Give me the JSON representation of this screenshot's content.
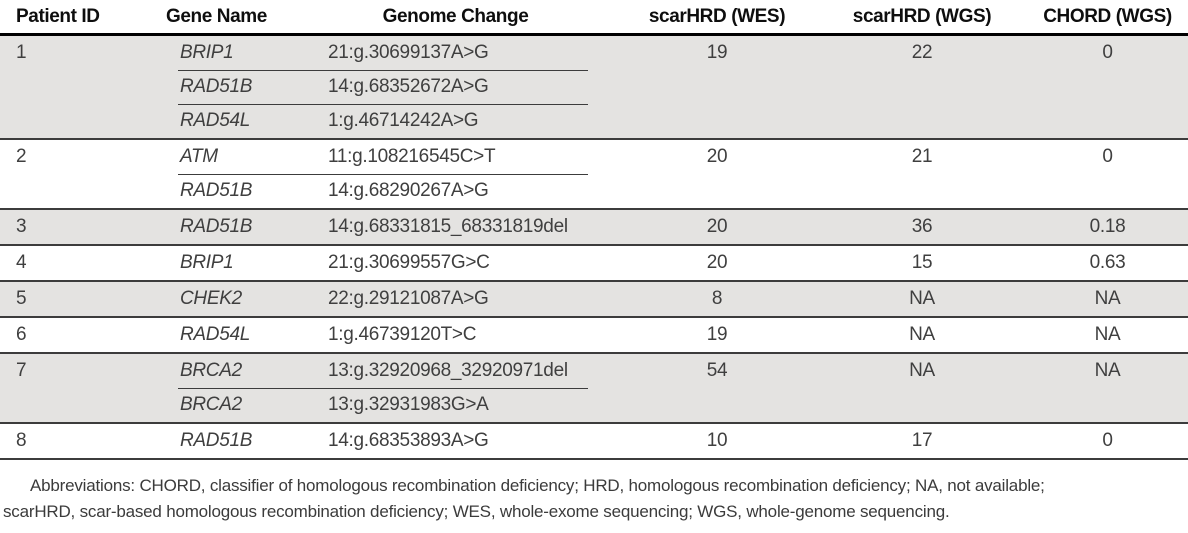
{
  "table": {
    "headers": [
      "Patient ID",
      "Gene Name",
      "Genome Change",
      "scarHRD (WES)",
      "scarHRD (WGS)",
      "CHORD (WGS)"
    ],
    "patients": [
      {
        "id": "1",
        "genes": [
          {
            "gene": "BRIP1",
            "change": "21:g.30699137A>G"
          },
          {
            "gene": "RAD51B",
            "change": "14:g.68352672A>G"
          },
          {
            "gene": "RAD54L",
            "change": "1:g.46714242A>G"
          }
        ],
        "scarhrd_wes": "19",
        "scarhrd_wgs": "22",
        "chord_wgs": "0"
      },
      {
        "id": "2",
        "genes": [
          {
            "gene": "ATM",
            "change": "11:g.108216545C>T"
          },
          {
            "gene": "RAD51B",
            "change": "14:g.68290267A>G"
          }
        ],
        "scarhrd_wes": "20",
        "scarhrd_wgs": "21",
        "chord_wgs": "0"
      },
      {
        "id": "3",
        "genes": [
          {
            "gene": "RAD51B",
            "change": "14:g.68331815_68331819del"
          }
        ],
        "scarhrd_wes": "20",
        "scarhrd_wgs": "36",
        "chord_wgs": "0.18"
      },
      {
        "id": "4",
        "genes": [
          {
            "gene": "BRIP1",
            "change": "21:g.30699557G>C"
          }
        ],
        "scarhrd_wes": "20",
        "scarhrd_wgs": "15",
        "chord_wgs": "0.63"
      },
      {
        "id": "5",
        "genes": [
          {
            "gene": "CHEK2",
            "change": "22:g.29121087A>G"
          }
        ],
        "scarhrd_wes": "8",
        "scarhrd_wgs": "NA",
        "chord_wgs": "NA"
      },
      {
        "id": "6",
        "genes": [
          {
            "gene": "RAD54L",
            "change": "1:g.46739120T>C"
          }
        ],
        "scarhrd_wes": "19",
        "scarhrd_wgs": "NA",
        "chord_wgs": "NA"
      },
      {
        "id": "7",
        "genes": [
          {
            "gene": "BRCA2",
            "change": "13:g.32920968_32920971del"
          },
          {
            "gene": "BRCA2",
            "change": "13:g.32931983G>A"
          }
        ],
        "scarhrd_wes": "54",
        "scarhrd_wgs": "NA",
        "chord_wgs": "NA"
      },
      {
        "id": "8",
        "genes": [
          {
            "gene": "RAD51B",
            "change": "14:g.68353893A>G"
          }
        ],
        "scarhrd_wes": "10",
        "scarhrd_wgs": "17",
        "chord_wgs": "0"
      }
    ]
  },
  "footnote": {
    "line1": "Abbreviations: CHORD, classifier of homologous recombination deficiency; HRD, homologous recombination deficiency; NA, not available;",
    "line2": "scarHRD, scar-based homologous recombination deficiency; WES, whole-exome sequencing; WGS, whole-genome sequencing.",
    "full_text": "Abbreviations: CHORD, classifier of homologous recombination deficiency; HRD, homologous recombination deficiency; NA, not available; scarHRD, scar-based homologous recombination deficiency; WES, whole-exome sequencing; WGS, whole-genome sequencing."
  },
  "colors": {
    "row_shading": "#e4e3e1",
    "rule_dark": "#000000",
    "rule_gray": "#3c3c3c",
    "body_text": "#3f3f3f"
  }
}
